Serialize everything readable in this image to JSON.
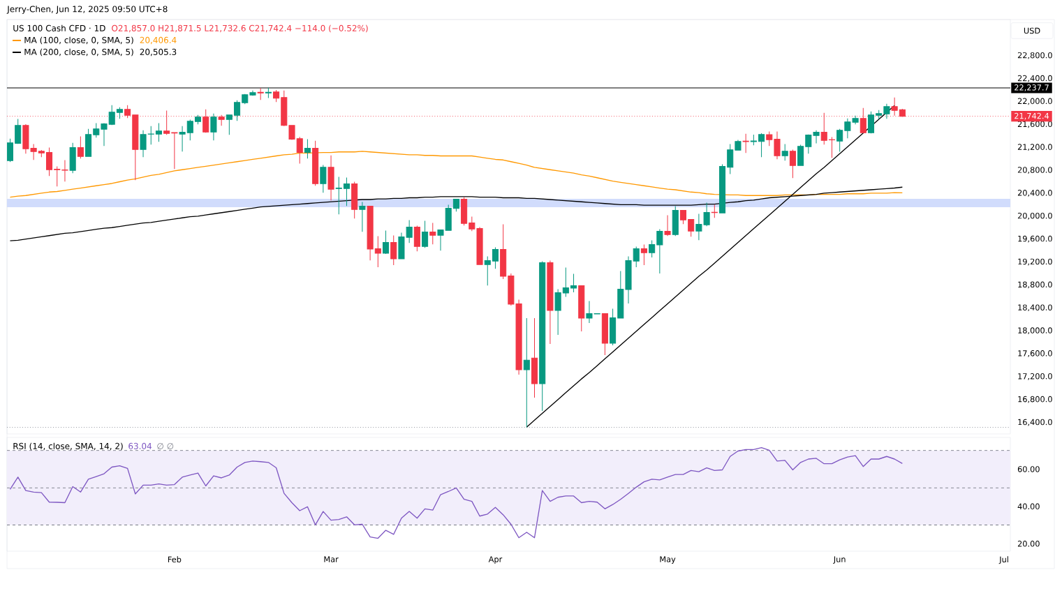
{
  "chart_data": [
    {
      "type": "candlestick",
      "title": "US 100 Cash CFD · 1D",
      "subtitle": "O21,857.0 H21,871.5 L21,732.6 C21,742.4 −114.0 (−0.52%)",
      "annotations": [
        "Jerry-Chen, Jun 12, 2025 09:50 UTC+8",
        "USD",
        "20,406.4",
        "20,505.3"
      ],
      "categories": [
        null,
        null,
        null,
        null,
        null,
        null,
        null,
        null,
        null,
        null,
        null,
        null,
        null,
        null,
        null,
        null,
        null,
        null,
        null,
        null,
        null,
        null,
        null,
        null,
        null,
        null,
        null,
        null,
        null,
        null,
        null,
        null,
        null,
        null,
        null,
        null,
        null,
        null,
        null,
        null,
        null,
        null,
        null,
        null,
        null,
        null,
        null,
        null,
        null,
        null,
        null,
        null,
        null,
        null,
        null,
        null,
        null,
        null,
        null,
        null,
        null,
        null,
        null,
        null,
        null,
        null,
        null,
        null,
        null,
        null,
        null,
        null,
        null,
        null,
        null,
        null,
        null,
        null,
        null,
        null,
        null,
        null,
        null,
        null,
        null,
        null,
        null,
        null,
        null,
        null,
        null,
        null,
        null,
        null,
        null,
        null,
        null,
        null,
        null,
        null,
        null,
        null,
        null,
        null,
        null,
        null,
        null,
        null,
        null,
        null,
        null,
        null,
        null,
        null,
        null,
        null,
        null,
        null,
        null,
        null,
        null,
        null,
        null,
        null,
        null,
        null,
        null,
        null
      ],
      "ohlc": [
        [
          20968,
          21353,
          20944,
          21280
        ],
        [
          21268,
          21694,
          21260,
          21584
        ],
        [
          21584,
          21605,
          21090,
          21175
        ],
        [
          21183,
          21256,
          20980,
          21126
        ],
        [
          21134,
          21155,
          21029,
          21102
        ],
        [
          21110,
          21195,
          20701,
          20810
        ],
        [
          20818,
          20867,
          20518,
          20810
        ],
        [
          20806,
          20976,
          20603,
          20800
        ],
        [
          20798,
          21280,
          20749,
          21195
        ],
        [
          21195,
          21390,
          21005,
          21041
        ],
        [
          21041,
          21523,
          21035,
          21426
        ],
        [
          21418,
          21621,
          21369,
          21523
        ],
        [
          21515,
          21621,
          21223,
          21609
        ],
        [
          21601,
          21937,
          21590,
          21815
        ],
        [
          21807,
          21900,
          21698,
          21864
        ],
        [
          21864,
          21937,
          21710,
          21758
        ],
        [
          21767,
          21767,
          20628,
          21163
        ],
        [
          21163,
          21499,
          21029,
          21426
        ],
        [
          21430,
          21572,
          21248,
          21434
        ],
        [
          21430,
          21621,
          21297,
          21487
        ],
        [
          21487,
          21840,
          21418,
          21442
        ],
        [
          21458,
          21463,
          20822,
          21450
        ],
        [
          21430,
          21572,
          21126,
          21463
        ],
        [
          21454,
          21682,
          21321,
          21657
        ],
        [
          21649,
          21767,
          21600,
          21730
        ],
        [
          21730,
          21864,
          21454,
          21467
        ],
        [
          21467,
          21791,
          21321,
          21730
        ],
        [
          21730,
          21767,
          21576,
          21686
        ],
        [
          21686,
          21767,
          21418,
          21767
        ],
        [
          21759,
          22022,
          21661,
          21985
        ],
        [
          21977,
          22131,
          21953,
          22119
        ],
        [
          22111,
          22192,
          22100,
          22156
        ],
        [
          22160,
          22233,
          22026,
          22148
        ],
        [
          22150,
          22240,
          22060,
          22160
        ],
        [
          22168,
          22200,
          21990,
          22058
        ],
        [
          22070,
          22190,
          21570,
          21584
        ],
        [
          21584,
          21590,
          21330,
          21341
        ],
        [
          21353,
          21381,
          20915,
          21110
        ],
        [
          21110,
          21341,
          21004,
          21183
        ],
        [
          21183,
          21316,
          20530,
          20567
        ],
        [
          20567,
          20891,
          20409,
          20854
        ],
        [
          20854,
          21061,
          20275,
          20469
        ],
        [
          20482,
          20684,
          20032,
          20490
        ],
        [
          20482,
          20672,
          20178,
          20563
        ],
        [
          20563,
          20599,
          19959,
          20117
        ],
        [
          20117,
          20246,
          19728,
          20174
        ],
        [
          20174,
          20174,
          19229,
          19424
        ],
        [
          19432,
          19651,
          19108,
          19351
        ],
        [
          19351,
          19748,
          19340,
          19541
        ],
        [
          19541,
          19663,
          19144,
          19254
        ],
        [
          19254,
          19712,
          19250,
          19639
        ],
        [
          19630,
          19930,
          19533,
          19809
        ],
        [
          19809,
          19833,
          19387,
          19472
        ],
        [
          19472,
          19918,
          19448,
          19724
        ],
        [
          19724,
          19882,
          19509,
          19667
        ],
        [
          19667,
          19760,
          19399,
          19760
        ],
        [
          19752,
          20198,
          19745,
          20137
        ],
        [
          20133,
          20300,
          20080,
          20295
        ],
        [
          20295,
          20332,
          19837,
          19874
        ],
        [
          19882,
          19991,
          19740,
          19776
        ],
        [
          19784,
          19809,
          19150,
          19156
        ],
        [
          19156,
          19298,
          18791,
          19225
        ],
        [
          19217,
          19456,
          19083,
          19420
        ],
        [
          19420,
          19857,
          18901,
          18950
        ],
        [
          18958,
          18998,
          18439,
          18463
        ],
        [
          18471,
          18544,
          17235,
          17320
        ],
        [
          17320,
          18220,
          16315,
          17486
        ],
        [
          17524,
          18220,
          16834,
          17077
        ],
        [
          17077,
          19213,
          16603,
          19189
        ],
        [
          19189,
          19225,
          17770,
          18354
        ],
        [
          18354,
          18727,
          17928,
          18666
        ],
        [
          18658,
          19104,
          18593,
          18751
        ],
        [
          18743,
          18994,
          18670,
          18787
        ],
        [
          18787,
          18787,
          17989,
          18220
        ],
        [
          18220,
          18520,
          18135,
          18301
        ],
        [
          18293,
          18305,
          18289,
          18301
        ],
        [
          18301,
          18301,
          17576,
          17782
        ],
        [
          17782,
          18386,
          17746,
          18228
        ],
        [
          18220,
          19043,
          18216,
          18727
        ],
        [
          18719,
          19298,
          18475,
          19225
        ],
        [
          19217,
          19468,
          19108,
          19432
        ],
        [
          19432,
          19505,
          19144,
          19363
        ],
        [
          19363,
          19578,
          19278,
          19505
        ],
        [
          19497,
          19772,
          18998,
          19736
        ],
        [
          19736,
          20016,
          19655,
          19679
        ],
        [
          19679,
          20174,
          19655,
          20101
        ],
        [
          20101,
          20101,
          19861,
          19934
        ],
        [
          19942,
          19942,
          19643,
          19740
        ],
        [
          19740,
          20040,
          19582,
          19857
        ],
        [
          19849,
          20234,
          19825,
          20064
        ],
        [
          20068,
          20198,
          19971,
          20060
        ],
        [
          20056,
          20903,
          20056,
          20867
        ],
        [
          20854,
          21256,
          20733,
          21158
        ],
        [
          21150,
          21329,
          21150,
          21304
        ],
        [
          21308,
          21438,
          21102,
          21300
        ],
        [
          21300,
          21422,
          21235,
          21312
        ],
        [
          21304,
          21446,
          21029,
          21426
        ],
        [
          21422,
          21475,
          21224,
          21333
        ],
        [
          21341,
          21475,
          20992,
          21053
        ],
        [
          21053,
          21256,
          20968,
          21134
        ],
        [
          21134,
          21159,
          20664,
          20883
        ],
        [
          20883,
          21244,
          20883,
          21219
        ],
        [
          21211,
          21426,
          21090,
          21414
        ],
        [
          21406,
          21499,
          21268,
          21463
        ],
        [
          21463,
          21803,
          21248,
          21321
        ],
        [
          21333,
          21378,
          21017,
          21329
        ],
        [
          21309,
          21523,
          21122,
          21499
        ],
        [
          21491,
          21706,
          21357,
          21645
        ],
        [
          21637,
          21754,
          21600,
          21706
        ],
        [
          21706,
          21888,
          21455,
          21455
        ],
        [
          21455,
          21827,
          21442,
          21767
        ],
        [
          21759,
          21852,
          21690,
          21791
        ],
        [
          21783,
          21961,
          21698,
          21913
        ],
        [
          21913,
          22071,
          21754,
          21844
        ],
        [
          21857.0,
          21871.5,
          21732.6,
          21742.4
        ],
        null,
        null,
        null,
        null,
        null,
        null,
        null,
        null,
        null,
        null,
        null,
        null,
        null
      ],
      "colors": [
        "#089981",
        "#089981",
        "#f23645",
        "#f23645",
        "#f23645",
        "#f23645",
        "#f23645",
        "#f23645",
        "#089981",
        "#f23645",
        "#089981",
        "#089981",
        "#089981",
        "#089981",
        "#089981",
        "#f23645",
        "#f23645",
        "#089981",
        "#089981",
        "#089981",
        "#f23645",
        "#f23645",
        "#089981",
        "#089981",
        "#089981",
        "#f23645",
        "#089981",
        "#f23645",
        "#089981",
        "#089981",
        "#089981",
        "#089981",
        "#f23645",
        "#089981",
        "#f23645",
        "#f23645",
        "#f23645",
        "#f23645",
        "#089981",
        "#f23645",
        "#089981",
        "#f23645",
        "#089981",
        "#089981",
        "#f23645",
        "#089981",
        "#f23645",
        "#f23645",
        "#089981",
        "#f23645",
        "#089981",
        "#089981",
        "#f23645",
        "#089981",
        "#f23645",
        "#089981",
        "#089981",
        "#089981",
        "#f23645",
        "#f23645",
        "#f23645",
        "#089981",
        "#089981",
        "#f23645",
        "#f23645",
        "#f23645",
        "#089981",
        "#f23645",
        "#089981",
        "#f23645",
        "#089981",
        "#089981",
        "#089981",
        "#f23645",
        "#089981",
        "#089981",
        "#f23645",
        "#089981",
        "#089981",
        "#089981",
        "#089981",
        "#f23645",
        "#089981",
        "#089981",
        "#f23645",
        "#089981",
        "#f23645",
        "#f23645",
        "#089981",
        "#089981",
        "#f23645",
        "#089981",
        "#089981",
        "#089981",
        "#f23645",
        "#089981",
        "#089981",
        "#f23645",
        "#f23645",
        "#089981",
        "#f23645",
        "#089981",
        "#089981",
        "#089981",
        "#f23645",
        "#f23645",
        "#089981",
        "#089981",
        "#089981",
        "#f23645",
        "#089981",
        "#089981",
        "#089981",
        "#f23645",
        "#f23645",
        null,
        null,
        null,
        null,
        null,
        null,
        null,
        null,
        null,
        null,
        null,
        null,
        null
      ],
      "series": [
        {
          "name": "MA (100, close, 0, SMA, 5)",
          "type": "line",
          "color": "#ff9800",
          "values": [
            20330,
            20350,
            20360,
            20380,
            20400,
            20420,
            20430,
            20450,
            20470,
            20490,
            20510,
            20530,
            20550,
            20570,
            20600,
            20630,
            20650,
            20680,
            20710,
            20730,
            20760,
            20790,
            20810,
            20830,
            20850,
            20870,
            20890,
            20910,
            20930,
            20950,
            20970,
            20990,
            21010,
            21030,
            21050,
            21070,
            21080,
            21100,
            21100,
            null,
            21110,
            21110,
            21120,
            21120,
            21120,
            21130,
            21120,
            21110,
            21100,
            21090,
            21080,
            21070,
            21070,
            21060,
            21060,
            21050,
            21050,
            21050,
            21050,
            21050,
            21030,
            21010,
            20990,
            20980,
            20950,
            20920,
            20890,
            20850,
            20830,
            20810,
            20790,
            20770,
            20750,
            20720,
            20700,
            20670,
            20640,
            20610,
            20590,
            20570,
            20550,
            20530,
            20510,
            20490,
            20470,
            20460,
            20440,
            20420,
            20410,
            20390,
            20380,
            null,
            20370,
            20370,
            20360,
            20360,
            20360,
            20360,
            20360,
            20370,
            20370,
            20370,
            20370,
            20380,
            20380,
            20380,
            20380,
            20390,
            20390,
            20390,
            20400,
            20400,
            20400,
            20410,
            20406.4,
            null,
            null,
            null,
            null,
            null,
            null,
            null,
            null,
            null,
            null,
            null,
            null,
            null
          ]
        },
        {
          "name": "MA (200, close, 0, SMA, 5)",
          "type": "line",
          "color": "#000000",
          "values": [
            19570,
            19580,
            19600,
            19620,
            19640,
            19660,
            19680,
            19700,
            19710,
            19730,
            19750,
            19770,
            19790,
            19800,
            19820,
            19840,
            19860,
            19880,
            19890,
            19910,
            19930,
            19950,
            19970,
            19990,
            20000,
            20020,
            20040,
            20060,
            20080,
            20100,
            20120,
            20140,
            20160,
            20170,
            20180,
            20190,
            20200,
            20210,
            20220,
            20230,
            20240,
            20250,
            20260,
            20270,
            null,
            20290,
            20290,
            20300,
            20300,
            20310,
            20310,
            20320,
            20320,
            20330,
            20330,
            20340,
            20340,
            20340,
            20340,
            20340,
            20330,
            20330,
            20330,
            20320,
            20320,
            20320,
            20310,
            20310,
            20300,
            20290,
            20280,
            20270,
            20260,
            20250,
            20240,
            20230,
            20220,
            20210,
            20200,
            20200,
            20200,
            20190,
            20190,
            20190,
            20190,
            20190,
            20190,
            20190,
            20200,
            20210,
            20210,
            null,
            20240,
            20250,
            20270,
            20280,
            20300,
            20320,
            20330,
            20340,
            20350,
            20360,
            20370,
            20380,
            20400,
            20410,
            20420,
            20430,
            20440,
            20450,
            20460,
            20470,
            20480,
            20490,
            20505.3,
            null,
            null,
            null,
            null,
            null,
            null,
            null,
            null,
            null,
            null,
            null,
            null,
            null
          ]
        },
        {
          "type": "line",
          "color": "#000000",
          "values": [
            null,
            null,
            null,
            null,
            null,
            null,
            null,
            null,
            null,
            null,
            null,
            null,
            null,
            null,
            null,
            null,
            null,
            null,
            null,
            null,
            null,
            null,
            null,
            null,
            null,
            null,
            null,
            null,
            null,
            null,
            null,
            null,
            null,
            null,
            null,
            null,
            null,
            null,
            null,
            null,
            null,
            null,
            null,
            null,
            null,
            null,
            null,
            null,
            null,
            null,
            null,
            null,
            null,
            null,
            null,
            null,
            null,
            null,
            null,
            null,
            null,
            null,
            null,
            null,
            null,
            null,
            16320,
            16440,
            16560,
            16680,
            16800,
            16920,
            17040,
            17160,
            17270,
            17390,
            17510,
            17630,
            17750,
            17870,
            17990,
            18110,
            18230,
            18350,
            18470,
            18590,
            18710,
            18830,
            18950,
            19060,
            19180,
            19300,
            19420,
            19540,
            19660,
            19780,
            19900,
            20020,
            20140,
            20260,
            20380,
            20500,
            20620,
            20740,
            20850,
            20970,
            21090,
            21210,
            21330,
            21450,
            null,
            21690,
            21810,
            21930,
            null,
            null,
            null,
            null,
            null,
            null,
            null,
            null,
            null,
            null,
            null,
            null,
            null,
            null
          ]
        }
      ],
      "ylim": [
        16200,
        23430
      ],
      "yticks": [
        {
          "value": 16400,
          "label": "16,400.0"
        },
        {
          "value": 16800,
          "label": "16,800.0"
        },
        {
          "value": 17200,
          "label": "17,200.0"
        },
        {
          "value": 17600,
          "label": "17,600.0"
        },
        {
          "value": 18000,
          "label": "18,000.0"
        },
        {
          "value": 18400,
          "label": "18,400.0"
        },
        {
          "value": 18800,
          "label": "18,800.0"
        },
        {
          "value": 19200,
          "label": "19,200.0"
        },
        {
          "value": 19600,
          "label": "19,600.0"
        },
        {
          "value": 20000,
          "label": "20,000.0"
        },
        {
          "value": 20400,
          "label": "20,400.0"
        },
        {
          "value": 20800,
          "label": "20,800.0"
        },
        {
          "value": 21200,
          "label": "21,200.0"
        },
        {
          "value": 21600,
          "label": "21,600.0"
        },
        {
          "value": 22000,
          "label": "22,000.0"
        },
        {
          "value": 22400,
          "label": "22,400.0"
        },
        {
          "value": 22800,
          "label": "22,800.0"
        }
      ],
      "tick_labels": "y",
      "legend": "top left",
      "ref_lines": [
        {
          "axis": "y",
          "value": 22237.7,
          "label": "22,237.7",
          "color": "#000000"
        },
        {
          "axis": "y",
          "value": 21742.4,
          "label": "21,742.4",
          "color": "#f23645",
          "line_style": "dotted"
        },
        {
          "axis": "y",
          "value": 16315,
          "color": "#9598a1",
          "line_style": "dotted"
        }
      ],
      "bands": [
        {
          "axis": "y",
          "from": 20157,
          "to": 20303,
          "color": "#d1dcfc"
        }
      ]
    },
    {
      "type": "line",
      "title": "RSI (14, close, SMA, 14, 2)",
      "annotations": [
        "63.04",
        "∅ ∅"
      ],
      "categories": [
        null,
        null,
        null,
        null,
        null,
        null,
        null,
        null,
        null,
        null,
        null,
        null,
        null,
        null,
        null,
        null,
        null,
        null,
        null,
        null,
        null,
        "Feb",
        null,
        null,
        null,
        null,
        null,
        null,
        null,
        null,
        null,
        null,
        null,
        null,
        null,
        null,
        null,
        null,
        null,
        null,
        null,
        "Mar",
        null,
        null,
        null,
        null,
        null,
        null,
        null,
        null,
        null,
        null,
        null,
        null,
        null,
        null,
        null,
        null,
        null,
        null,
        null,
        null,
        "Apr",
        null,
        null,
        null,
        null,
        null,
        null,
        null,
        null,
        null,
        null,
        null,
        null,
        null,
        null,
        null,
        null,
        null,
        null,
        null,
        null,
        null,
        "May",
        null,
        null,
        null,
        null,
        null,
        null,
        null,
        null,
        null,
        null,
        null,
        null,
        null,
        null,
        null,
        null,
        null,
        null,
        null,
        null,
        null,
        "Jun",
        null,
        null,
        null,
        null,
        null,
        null,
        null,
        null,
        null,
        null,
        null,
        null,
        null,
        null,
        null,
        null,
        null,
        null,
        null,
        null,
        "Jul"
      ],
      "series": [
        {
          "color": "#7e57c2",
          "values": [
            49.2,
            55.7,
            48.5,
            47.7,
            47.4,
            42.3,
            42.2,
            42.0,
            50.6,
            47.7,
            54.6,
            56.0,
            57.5,
            61.1,
            61.8,
            60.4,
            46.7,
            51.4,
            51.4,
            52.1,
            51.4,
            51.7,
            55.7,
            56.8,
            57.9,
            51.0,
            56.4,
            55.3,
            56.8,
            61.1,
            63.6,
            64.3,
            64.0,
            63.6,
            60.7,
            47.0,
            42.0,
            37.7,
            39.8,
            30.1,
            37.3,
            32.6,
            33.0,
            34.4,
            30.1,
            30.4,
            23.6,
            22.9,
            27.2,
            25.0,
            33.7,
            37.3,
            33.7,
            38.7,
            38.0,
            46.3,
            48.0,
            49.9,
            43.8,
            42.7,
            34.8,
            35.9,
            39.5,
            35.5,
            30.4,
            23.2,
            26.1,
            23.2,
            48.5,
            42.7,
            44.9,
            45.6,
            45.6,
            42.0,
            42.7,
            42.3,
            38.7,
            41.0,
            43.8,
            47.0,
            50.3,
            53.2,
            54.6,
            54.2,
            55.7,
            57.1,
            57.1,
            59.3,
            58.6,
            60.7,
            59.3,
            59.6,
            66.8,
            69.7,
            70.5,
            70.5,
            71.5,
            70.1,
            64.3,
            64.7,
            59.6,
            63.6,
            65.4,
            65.8,
            62.9,
            62.9,
            65.0,
            66.5,
            67.2,
            61.4,
            65.4,
            65.4,
            66.8,
            65.4,
            63.0,
            null,
            null,
            null,
            null,
            null,
            null,
            null,
            null,
            null,
            null,
            null,
            null,
            null
          ]
        }
      ],
      "ylim": [
        16,
        77
      ],
      "yticks": [
        {
          "value": 20,
          "label": "20.00"
        },
        {
          "value": 40,
          "label": "40.00"
        },
        {
          "value": 60,
          "label": "60.00"
        }
      ],
      "ref_lines": [
        {
          "axis": "y",
          "value": 70,
          "color": "#787b86",
          "line_style": "dashed"
        },
        {
          "axis": "y",
          "value": 50,
          "color": "#787b86",
          "line_style": "dashed"
        },
        {
          "axis": "y",
          "value": 30,
          "color": "#787b86",
          "line_style": "dashed"
        }
      ],
      "bands": [
        {
          "axis": "y",
          "from": 30,
          "to": 70,
          "color": "#f2eefb"
        }
      ]
    }
  ]
}
